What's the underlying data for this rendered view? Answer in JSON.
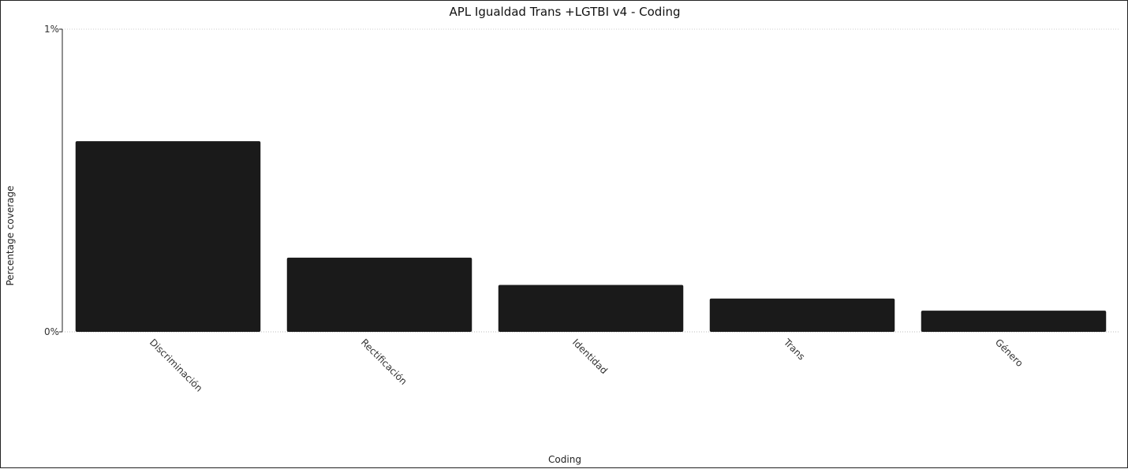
{
  "chart_data": {
    "type": "bar",
    "title": "APL Igualdad Trans +LGTBI v4 - Coding",
    "xlabel": "Coding",
    "ylabel": "Percentage coverage",
    "categories": [
      "Discriminación",
      "Rectificación",
      "Identidad",
      "Trans",
      "Género"
    ],
    "values": [
      0.63,
      0.245,
      0.155,
      0.11,
      0.07
    ],
    "ylim": [
      0,
      1
    ],
    "yticks": [
      "0%",
      "1%"
    ],
    "grid": true,
    "bar_color": "#1a1a1a"
  }
}
